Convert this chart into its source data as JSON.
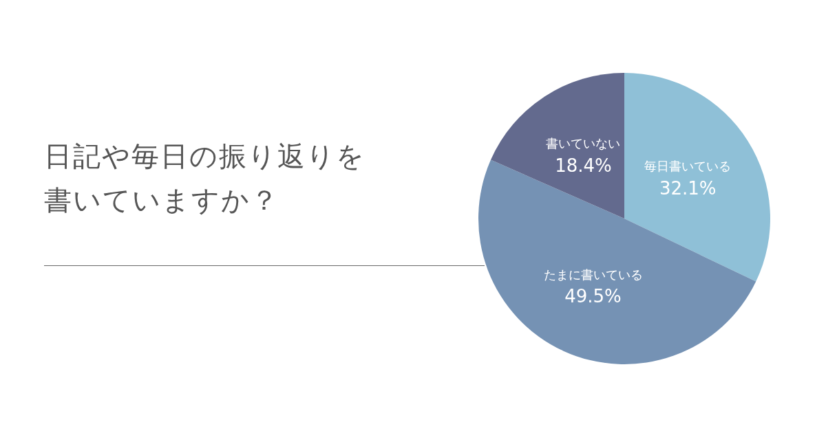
{
  "chart_data": {
    "type": "pie",
    "title": "日記や毎日の振り返りを書いていますか？",
    "categories": [
      "毎日書いている",
      "たまに書いている",
      "書いていない"
    ],
    "values": [
      32.1,
      49.5,
      18.4
    ],
    "value_labels": [
      "32.1%",
      "49.5%",
      "18.4%"
    ],
    "colors": [
      "#8fc0d7",
      "#7592b4",
      "#636a8e"
    ],
    "legend": false
  }
}
